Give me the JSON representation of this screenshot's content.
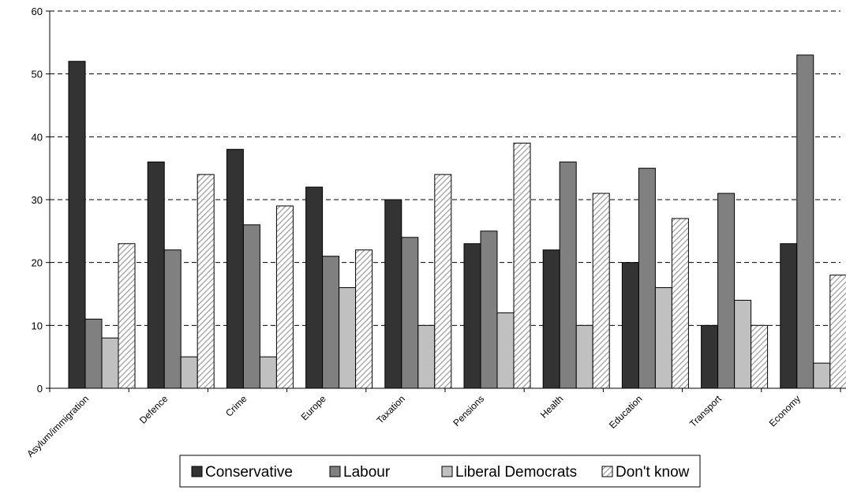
{
  "chart_data": {
    "type": "bar",
    "title": "",
    "xlabel": "",
    "ylabel": "",
    "ylim": [
      0,
      60
    ],
    "yticks": [
      0,
      10,
      20,
      30,
      40,
      50,
      60
    ],
    "grid": "horizontal dashed",
    "legend_position": "bottom",
    "categories": [
      "Asylum/immigration",
      "Defence",
      "Crime",
      "Europe",
      "Taxation",
      "Pensions",
      "Health",
      "Education",
      "Transport",
      "Economy"
    ],
    "series": [
      {
        "name": "Conservative",
        "color": "#333333",
        "pattern": "solid",
        "values": [
          52,
          36,
          38,
          32,
          30,
          23,
          22,
          20,
          10,
          23
        ]
      },
      {
        "name": "Labour",
        "color": "#808080",
        "pattern": "solid",
        "values": [
          11,
          22,
          26,
          21,
          24,
          25,
          36,
          35,
          31,
          53
        ]
      },
      {
        "name": "Liberal Democrats",
        "color": "#c0c0c0",
        "pattern": "solid",
        "values": [
          8,
          5,
          5,
          16,
          10,
          12,
          10,
          16,
          14,
          4
        ]
      },
      {
        "name": "Don't know",
        "color": "#ffffff",
        "pattern": "diagonal-hatch",
        "values": [
          23,
          34,
          29,
          22,
          34,
          39,
          31,
          27,
          10,
          18
        ]
      }
    ]
  }
}
